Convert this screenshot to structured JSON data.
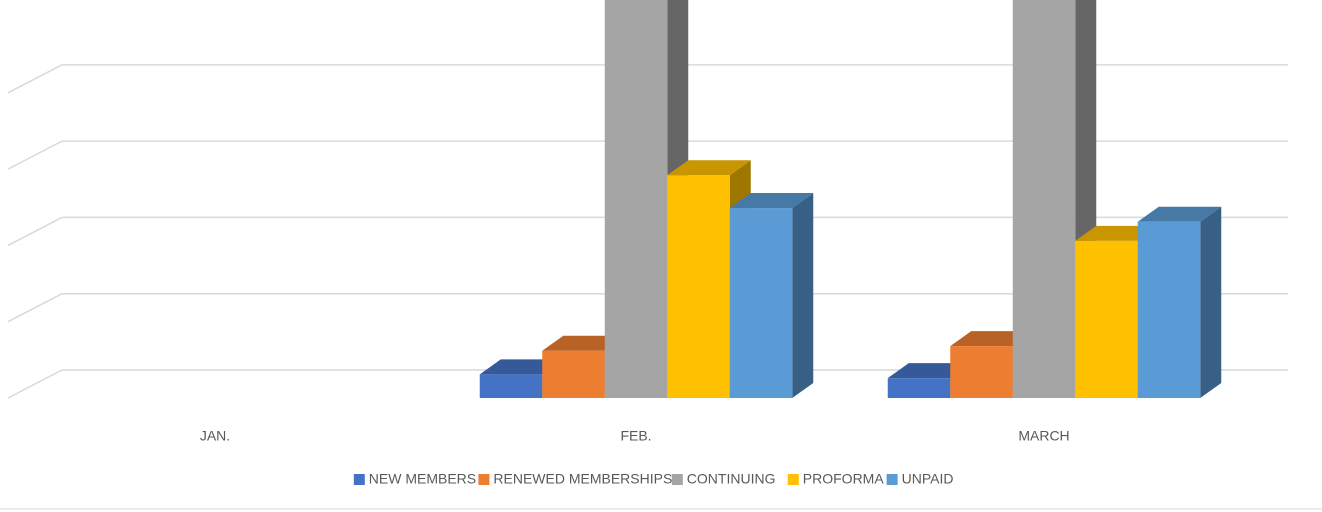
{
  "chart_data": {
    "type": "bar3d",
    "categories": [
      "JAN.",
      "FEB.",
      "MARCH"
    ],
    "series": [
      {
        "name": "NEW MEMBERS",
        "color": "#4472c4",
        "values": [
          0,
          0.31,
          0.26
        ]
      },
      {
        "name": "RENEWED MEMBERSHIPS",
        "color": "#ed7d31",
        "values": [
          0,
          0.62,
          0.68
        ]
      },
      {
        "name": "CONTINUING",
        "color": "#a5a5a5",
        "values": [
          0,
          6,
          6
        ]
      },
      {
        "name": "PROFORMA",
        "color": "#ffc000",
        "values": [
          0,
          2.92,
          2.06
        ]
      },
      {
        "name": "UNPAID",
        "color": "#5b9bd5",
        "values": [
          0,
          2.49,
          2.31
        ]
      }
    ],
    "ylim": [
      0,
      4.85
    ],
    "yticks": [
      0,
      1,
      2,
      3,
      4
    ],
    "grid": true,
    "legend": "bottom"
  }
}
